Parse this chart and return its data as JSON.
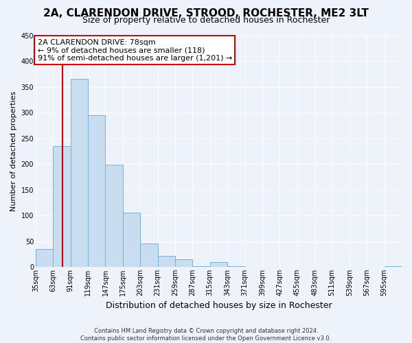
{
  "title": "2A, CLARENDON DRIVE, STROOD, ROCHESTER, ME2 3LT",
  "subtitle": "Size of property relative to detached houses in Rochester",
  "xlabel": "Distribution of detached houses by size in Rochester",
  "ylabel": "Number of detached properties",
  "bar_color": "#c8ddf0",
  "bar_edge_color": "#7bafd4",
  "background_color": "#eef2fb",
  "grid_color": "#ffffff",
  "annotation_line1": "2A CLARENDON DRIVE: 78sqm",
  "annotation_line2": "← 9% of detached houses are smaller (118)",
  "annotation_line3": "91% of semi-detached houses are larger (1,201) →",
  "annotation_box_facecolor": "#ffffff",
  "annotation_box_edgecolor": "#cc0000",
  "property_line_color": "#cc0000",
  "property_line_x": 78,
  "categories": [
    "35sqm",
    "63sqm",
    "91sqm",
    "119sqm",
    "147sqm",
    "175sqm",
    "203sqm",
    "231sqm",
    "259sqm",
    "287sqm",
    "315sqm",
    "343sqm",
    "371sqm",
    "399sqm",
    "427sqm",
    "455sqm",
    "483sqm",
    "511sqm",
    "539sqm",
    "567sqm",
    "595sqm"
  ],
  "bin_left_edges": [
    35,
    63,
    91,
    119,
    147,
    175,
    203,
    231,
    259,
    287,
    315,
    343,
    371,
    399,
    427,
    455,
    483,
    511,
    539,
    567,
    595
  ],
  "bin_width": 28,
  "values": [
    35,
    235,
    365,
    295,
    199,
    105,
    45,
    22,
    15,
    1,
    10,
    1,
    0,
    0,
    0,
    0,
    0,
    0,
    0,
    0,
    2
  ],
  "ylim": [
    0,
    450
  ],
  "xlim": [
    35,
    623
  ],
  "yticks": [
    0,
    50,
    100,
    150,
    200,
    250,
    300,
    350,
    400,
    450
  ],
  "footnote": "Contains HM Land Registry data © Crown copyright and database right 2024.\nContains public sector information licensed under the Open Government Licence v3.0.",
  "title_fontsize": 11,
  "subtitle_fontsize": 9,
  "xlabel_fontsize": 9,
  "ylabel_fontsize": 8,
  "tick_fontsize": 7,
  "annot_fontsize": 8,
  "footnote_fontsize": 6
}
